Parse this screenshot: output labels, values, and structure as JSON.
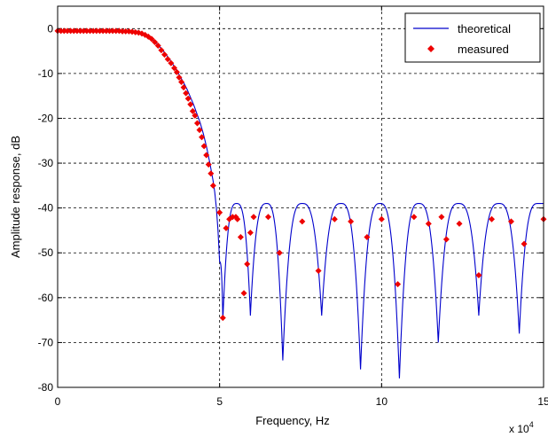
{
  "chart_data": {
    "type": "line",
    "title": "",
    "xlabel": "Frequency, Hz",
    "ylabel": "Amplitude response, dB",
    "x_multiplier_label": "x 10",
    "x_multiplier_exponent": "4",
    "xlim": [
      0,
      150000
    ],
    "ylim": [
      -80,
      5
    ],
    "grid": "dashed at x ticks 5 and 10, all y ticks",
    "legend_position": "top-right",
    "x_tick_labels": [
      "0",
      "5",
      "10",
      "15"
    ],
    "y_tick_labels": [
      "0",
      "-10",
      "-20",
      "-30",
      "-40",
      "-50",
      "-60",
      "-70",
      "-80"
    ],
    "series": [
      {
        "name": "theoretical",
        "kind": "line",
        "color": "#0000cc",
        "passband": {
          "x": [
            0,
            20000,
            25000,
            27000,
            29000,
            31000,
            33000,
            35000,
            37000,
            39000,
            40000,
            42000,
            44000,
            45000,
            46000,
            47000,
            48000,
            48500,
            49000,
            49500,
            50000
          ],
          "y": [
            -0.4,
            -0.4,
            -0.6,
            -1.2,
            -2.2,
            -3.6,
            -5.3,
            -7.3,
            -9.6,
            -12.2,
            -13.6,
            -17.0,
            -21.0,
            -23.5,
            -26.5,
            -30.0,
            -34.0,
            -36.5,
            -40.0,
            -45.0,
            -52.0
          ]
        },
        "stopband_nulls": [
          {
            "x": 51000,
            "y": -65
          },
          {
            "x": 59500,
            "y": -64
          },
          {
            "x": 69500,
            "y": -74
          },
          {
            "x": 81500,
            "y": -64
          },
          {
            "x": 93500,
            "y": -76
          },
          {
            "x": 105500,
            "y": -78
          },
          {
            "x": 117500,
            "y": -70
          },
          {
            "x": 130000,
            "y": -64
          },
          {
            "x": 142500,
            "y": -68
          }
        ],
        "stopband_peak_level": -39,
        "stopband_end": {
          "x": 150000,
          "y": -39
        }
      },
      {
        "name": "measured",
        "kind": "scatter",
        "color": "#ee0000",
        "x": [
          0,
          1000,
          2000,
          3000,
          4000,
          5000,
          6000,
          7000,
          8000,
          9000,
          10000,
          11000,
          12000,
          13000,
          14000,
          15000,
          16000,
          17000,
          18000,
          19000,
          20000,
          21000,
          22000,
          23000,
          24000,
          25000,
          26000,
          27000,
          28000,
          29000,
          30000,
          31000,
          32000,
          33000,
          34000,
          35000,
          36000,
          36800,
          37500,
          38200,
          38900,
          39600,
          40300,
          41000,
          41700,
          42400,
          43100,
          43800,
          44500,
          45200,
          45900,
          46600,
          47300,
          48000,
          50000,
          51000,
          52000,
          53000,
          54000,
          55000,
          55500,
          56500,
          57500,
          58500,
          59500,
          60500,
          65000,
          68500,
          75500,
          80500,
          85500,
          90500,
          95500,
          100000,
          105000,
          110000,
          114500,
          118500,
          120000,
          124000,
          130000,
          134000,
          140000,
          144000,
          150000
        ],
        "y": [
          -0.5,
          -0.5,
          -0.5,
          -0.5,
          -0.5,
          -0.5,
          -0.5,
          -0.5,
          -0.5,
          -0.5,
          -0.5,
          -0.5,
          -0.5,
          -0.5,
          -0.5,
          -0.5,
          -0.5,
          -0.5,
          -0.5,
          -0.5,
          -0.6,
          -0.6,
          -0.6,
          -0.7,
          -0.8,
          -0.9,
          -1.1,
          -1.4,
          -1.8,
          -2.3,
          -3.0,
          -3.8,
          -4.8,
          -5.8,
          -6.8,
          -7.7,
          -8.8,
          -9.7,
          -10.9,
          -11.9,
          -13.1,
          -14.4,
          -15.6,
          -16.9,
          -18.4,
          -19.4,
          -21.1,
          -22.6,
          -24.2,
          -26.2,
          -28.2,
          -30.3,
          -32.3,
          -35.0,
          -41.0,
          -64.5,
          -44.5,
          -42.5,
          -42.0,
          -42.0,
          -42.5,
          -46.5,
          -59.0,
          -52.5,
          -45.5,
          -42.0,
          -42.0,
          -50.0,
          -43.0,
          -54.0,
          -42.5,
          -43.0,
          -46.5,
          -42.5,
          -57.0,
          -42.0,
          -43.5,
          -42.0,
          -47.0,
          -43.5,
          -55.0,
          -42.5,
          -43.0,
          -48.0,
          -42.5
        ]
      }
    ]
  }
}
